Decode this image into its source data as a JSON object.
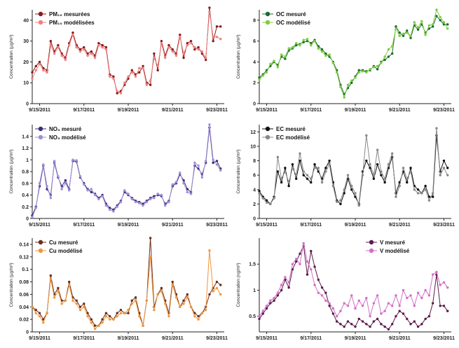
{
  "chart_data": [
    {
      "type": "line",
      "ylabel": "Concentration (µg/m³)",
      "ylim": [
        0,
        45
      ],
      "yticks": [
        0,
        10,
        20,
        30,
        40
      ],
      "xlim": [
        0,
        52
      ],
      "xticks": [
        {
          "label": "9/15/2011",
          "x": 2
        },
        {
          "label": "9/17/2011",
          "x": 14
        },
        {
          "label": "9/19/2011",
          "x": 26
        },
        {
          "label": "9/21/2011",
          "x": 38
        },
        {
          "label": "9/23/2011",
          "x": 50
        }
      ],
      "legend": "top-left",
      "series": [
        {
          "name": "PM₁₀ mesurées",
          "color": "#8b1a1a",
          "values": [
            15,
            18,
            20,
            17,
            16,
            30,
            25,
            28,
            24,
            22,
            29,
            34,
            28,
            26,
            27,
            24,
            25,
            23,
            29,
            28,
            27,
            14,
            13,
            5,
            6,
            9,
            12,
            16,
            14,
            15,
            18,
            10,
            9,
            24,
            16,
            30,
            23,
            28,
            26,
            24,
            33,
            22,
            29,
            30,
            26,
            27,
            24,
            21,
            46,
            30,
            37,
            37
          ]
        },
        {
          "name": "PM₁₀ modélisées",
          "color": "#f08080",
          "values": [
            12,
            16,
            19,
            16,
            15,
            28,
            24,
            27,
            23,
            21,
            28,
            33,
            27,
            25,
            26,
            23,
            24,
            22,
            28,
            27,
            26,
            13,
            12,
            6,
            5,
            10,
            13,
            15,
            13,
            17,
            17,
            9,
            11,
            22,
            18,
            29,
            22,
            27,
            25,
            23,
            32,
            24,
            28,
            29,
            27,
            26,
            25,
            22,
            44,
            32,
            32,
            31
          ]
        }
      ]
    },
    {
      "type": "line",
      "ylabel": "Concentration (µg/m³)",
      "ylim": [
        0,
        9
      ],
      "yticks": [
        0,
        2,
        4,
        6,
        8
      ],
      "xlim": [
        0,
        52
      ],
      "xticks": [
        {
          "label": "9/15/2011",
          "x": 2
        },
        {
          "label": "9/17/2011",
          "x": 14
        },
        {
          "label": "9/19/2011",
          "x": 26
        },
        {
          "label": "9/21/2011",
          "x": 38
        },
        {
          "label": "9/23/2011",
          "x": 50
        }
      ],
      "legend": "top-left",
      "series": [
        {
          "name": "OC mesuré",
          "color": "#1a6b2e",
          "values": [
            2.5,
            2.8,
            3.2,
            3.6,
            4.0,
            3.7,
            4.5,
            4.3,
            5.1,
            5.3,
            5.6,
            5.7,
            5.9,
            6.0,
            5.8,
            6.1,
            5.5,
            5.2,
            4.8,
            4.5,
            4.0,
            3.2,
            1.8,
            0.9,
            1.5,
            2.0,
            2.6,
            3.2,
            3.2,
            3.1,
            3.2,
            3.6,
            3.3,
            4.0,
            4.2,
            4.5,
            4.8,
            7.4,
            6.8,
            6.5,
            7.0,
            6.3,
            7.5,
            7.1,
            7.6,
            6.8,
            7.2,
            7.4,
            8.4,
            8.0,
            7.6,
            7.6
          ]
        },
        {
          "name": "OC modélisé",
          "color": "#7ccd3f",
          "values": [
            2.3,
            2.7,
            3.0,
            3.8,
            4.1,
            3.5,
            4.7,
            4.5,
            5.3,
            5.4,
            5.8,
            5.6,
            6.1,
            6.2,
            5.6,
            6.0,
            5.3,
            5.0,
            4.6,
            4.7,
            3.9,
            3.0,
            1.6,
            0.6,
            1.8,
            2.2,
            2.5,
            3.0,
            3.1,
            3.0,
            3.3,
            3.5,
            3.6,
            3.9,
            4.5,
            5.2,
            5.5,
            7.2,
            6.5,
            6.7,
            6.8,
            6.5,
            7.8,
            7.3,
            7.9,
            6.6,
            7.5,
            7.6,
            9.0,
            8.3,
            7.8,
            7.2
          ]
        }
      ]
    },
    {
      "type": "line",
      "ylabel": "Concentration (µg/m³)",
      "ylim": [
        0,
        1.6
      ],
      "yticks": [
        0,
        0.2,
        0.4,
        0.6,
        0.8,
        1.0,
        1.2,
        1.4
      ],
      "xlim": [
        0,
        52
      ],
      "xticks": [
        {
          "label": "9/15/2011",
          "x": 2
        },
        {
          "label": "9/17/2011",
          "x": 14
        },
        {
          "label": "9/19/2011",
          "x": 26
        },
        {
          "label": "9/21/2011",
          "x": 38
        },
        {
          "label": "9/23/2011",
          "x": 50
        }
      ],
      "legend": "top-left",
      "series": [
        {
          "name": "NO₃ mesuré",
          "color": "#3d2a78",
          "values": [
            0.05,
            0.2,
            0.55,
            0.9,
            0.5,
            0.4,
            0.95,
            0.7,
            0.55,
            0.65,
            0.5,
            0.98,
            0.97,
            0.7,
            0.6,
            0.5,
            0.45,
            0.42,
            0.35,
            0.4,
            0.25,
            0.18,
            0.15,
            0.22,
            0.3,
            0.45,
            0.4,
            0.35,
            0.3,
            0.28,
            0.25,
            0.3,
            0.35,
            0.38,
            0.4,
            0.38,
            0.25,
            0.3,
            0.55,
            0.6,
            0.75,
            0.65,
            0.5,
            0.45,
            0.9,
            0.85,
            0.75,
            0.95,
            1.55,
            0.95,
            0.98,
            0.85
          ]
        },
        {
          "name": "NO₃ modélisé",
          "color": "#9f8fd8",
          "values": [
            0.02,
            0.18,
            0.6,
            0.92,
            0.55,
            0.35,
            0.98,
            0.72,
            0.5,
            0.6,
            0.48,
            1.0,
            0.99,
            0.72,
            0.58,
            0.48,
            0.5,
            0.4,
            0.33,
            0.38,
            0.22,
            0.15,
            0.12,
            0.2,
            0.28,
            0.48,
            0.42,
            0.33,
            0.28,
            0.26,
            0.22,
            0.28,
            0.33,
            0.35,
            0.42,
            0.4,
            0.22,
            0.28,
            0.58,
            0.62,
            0.78,
            0.6,
            0.45,
            0.42,
            0.95,
            0.9,
            0.7,
            0.98,
            1.6,
            1.0,
            0.92,
            0.82
          ]
        }
      ]
    },
    {
      "type": "line",
      "ylabel": "Concentration (µg/m³)",
      "ylim": [
        0,
        13
      ],
      "yticks": [
        0,
        2,
        4,
        6,
        8,
        10,
        12
      ],
      "xlim": [
        0,
        52
      ],
      "xticks": [
        {
          "label": "9/15/2011",
          "x": 2
        },
        {
          "label": "9/17/2011",
          "x": 14
        },
        {
          "label": "9/19/2011",
          "x": 26
        },
        {
          "label": "9/21/2011",
          "x": 38
        },
        {
          "label": "9/23/2011",
          "x": 50
        }
      ],
      "legend": "top-left",
      "series": [
        {
          "name": "EC mesuré",
          "color": "#111111",
          "values": [
            3.8,
            3.0,
            2.5,
            2.0,
            3.0,
            6.5,
            5.0,
            7.0,
            4.5,
            7.5,
            5.5,
            8.0,
            6.0,
            5.5,
            5.0,
            7.5,
            6.5,
            5.5,
            7.0,
            8.0,
            5.0,
            2.5,
            2.0,
            3.5,
            5.5,
            4.0,
            3.0,
            2.0,
            6.5,
            8.0,
            7.0,
            5.5,
            7.5,
            6.0,
            5.0,
            7.0,
            8.5,
            3.5,
            5.0,
            6.5,
            5.0,
            7.0,
            4.5,
            4.0,
            3.5,
            4.5,
            3.0,
            3.0,
            11.5,
            6.5,
            8.0,
            7.0
          ]
        },
        {
          "name": "EC modélisé",
          "color": "#888888",
          "values": [
            3.5,
            2.8,
            2.2,
            2.0,
            2.8,
            8.5,
            5.5,
            6.5,
            5.0,
            7.0,
            6.0,
            9.0,
            6.5,
            6.0,
            5.5,
            7.0,
            7.0,
            5.0,
            6.5,
            7.5,
            4.5,
            2.3,
            2.5,
            4.0,
            6.0,
            4.5,
            3.5,
            1.8,
            6.0,
            11.5,
            7.5,
            6.0,
            9.5,
            6.5,
            5.5,
            7.5,
            9.0,
            3.0,
            4.5,
            7.0,
            5.5,
            6.5,
            4.0,
            3.5,
            3.5,
            4.0,
            2.5,
            3.5,
            12.5,
            6.0,
            7.0,
            6.0
          ]
        }
      ]
    },
    {
      "type": "line",
      "ylabel": "Concentration (µg/m³)",
      "ylim": [
        0,
        0.15
      ],
      "yticks": [
        0,
        0.02,
        0.04,
        0.06,
        0.08,
        0.1,
        0.12,
        0.14
      ],
      "xlim": [
        0,
        52
      ],
      "xticks": [
        {
          "label": "9/15/2011",
          "x": 2
        },
        {
          "label": "9/17/2011",
          "x": 14
        },
        {
          "label": "9/19/2011",
          "x": 26
        },
        {
          "label": "9/21/2011",
          "x": 38
        },
        {
          "label": "9/23/2011",
          "x": 50
        }
      ],
      "legend": "top-left",
      "series": [
        {
          "name": "Cu mesuré",
          "color": "#6b2e1a",
          "values": [
            0.04,
            0.035,
            0.03,
            0.02,
            0.03,
            0.09,
            0.06,
            0.07,
            0.05,
            0.05,
            0.08,
            0.055,
            0.05,
            0.04,
            0.045,
            0.03,
            0.02,
            0.01,
            0.01,
            0.02,
            0.03,
            0.025,
            0.02,
            0.03,
            0.035,
            0.03,
            0.03,
            0.05,
            0.055,
            0.03,
            0.01,
            0.05,
            0.15,
            0.04,
            0.06,
            0.07,
            0.05,
            0.03,
            0.08,
            0.06,
            0.04,
            0.05,
            0.06,
            0.04,
            0.03,
            0.025,
            0.03,
            0.04,
            0.06,
            0.07,
            0.08,
            0.075
          ]
        },
        {
          "name": "Cu modélisé",
          "color": "#f0963c",
          "values": [
            0.04,
            0.03,
            0.025,
            0.015,
            0.03,
            0.085,
            0.055,
            0.065,
            0.045,
            0.05,
            0.075,
            0.05,
            0.045,
            0.035,
            0.04,
            0.025,
            0.015,
            0.005,
            0.01,
            0.015,
            0.025,
            0.02,
            0.02,
            0.025,
            0.03,
            0.03,
            0.035,
            0.045,
            0.05,
            0.025,
            0.01,
            0.05,
            0.12,
            0.035,
            0.06,
            0.065,
            0.045,
            0.025,
            0.075,
            0.055,
            0.04,
            0.045,
            0.055,
            0.04,
            0.025,
            0.02,
            0.03,
            0.035,
            0.13,
            0.065,
            0.07,
            0.06
          ]
        }
      ]
    },
    {
      "type": "line",
      "ylabel": "Concentration (ng/m³)",
      "ylim": [
        0.2,
        2.0
      ],
      "yticks": [
        0.5,
        1.0,
        1.5
      ],
      "xlim": [
        0,
        52
      ],
      "xticks": [
        {
          "label": "9/15/2011",
          "x": 2
        },
        {
          "label": "9/17/2011",
          "x": 14
        },
        {
          "label": "9/19/2011",
          "x": 26
        },
        {
          "label": "9/21/2011",
          "x": 38
        },
        {
          "label": "9/23/2011",
          "x": 50
        }
      ],
      "legend": "top-right",
      "series": [
        {
          "name": "V mesuré",
          "color": "#5c1a4e",
          "values": [
            0.45,
            0.55,
            0.65,
            0.75,
            0.8,
            0.9,
            1.0,
            1.2,
            1.05,
            1.4,
            1.55,
            1.7,
            1.85,
            1.3,
            1.75,
            1.45,
            1.2,
            1.05,
            0.95,
            0.7,
            0.55,
            0.4,
            0.35,
            0.3,
            0.4,
            0.35,
            0.3,
            0.45,
            0.4,
            0.35,
            0.3,
            0.4,
            0.45,
            0.35,
            0.3,
            0.25,
            0.35,
            0.5,
            0.6,
            0.55,
            0.45,
            0.35,
            0.4,
            0.3,
            0.35,
            0.45,
            0.5,
            0.75,
            1.3,
            0.7,
            0.7,
            0.6
          ]
        },
        {
          "name": "V modélisé",
          "color": "#d36fc6",
          "values": [
            0.5,
            0.6,
            0.7,
            0.8,
            0.85,
            0.95,
            1.1,
            1.25,
            1.15,
            1.5,
            1.6,
            1.5,
            1.9,
            1.55,
            1.4,
            1.1,
            0.95,
            0.9,
            0.8,
            0.75,
            0.65,
            0.5,
            0.6,
            0.75,
            0.7,
            0.9,
            0.65,
            0.8,
            0.7,
            0.85,
            0.5,
            0.75,
            0.9,
            0.55,
            0.6,
            0.75,
            0.7,
            0.9,
            0.7,
            1.0,
            0.85,
            0.9,
            0.7,
            0.95,
            0.85,
            1.0,
            0.9,
            1.3,
            1.35,
            1.1,
            1.15,
            1.05
          ]
        }
      ]
    }
  ]
}
